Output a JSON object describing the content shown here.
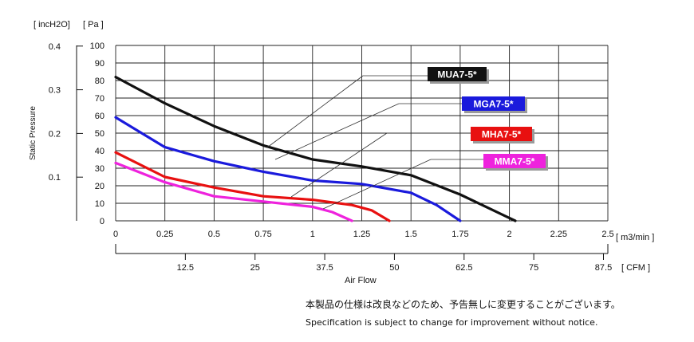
{
  "chart_data": {
    "type": "line",
    "title": "",
    "xlabel": "Air   Flow",
    "ylabel": "Static Pressure",
    "x_unit_primary": "[ m3/min ]",
    "x_unit_secondary": "[ CFM ]",
    "y_unit_primary": "[ Pa ]",
    "y_unit_secondary": "[ incH2O]",
    "xlim": [
      0,
      2.5
    ],
    "ylim": [
      0,
      100
    ],
    "x_ticks": [
      "0",
      "0.25",
      "0.5",
      "0.75",
      "1",
      "1.25",
      "1.5",
      "1.75",
      "2",
      "2.25",
      "2.5"
    ],
    "y_ticks": [
      "0",
      "10",
      "20",
      "30",
      "40",
      "50",
      "60",
      "70",
      "80",
      "90",
      "100"
    ],
    "cfm_ticks": [
      {
        "value": 12.5,
        "label": "12.5"
      },
      {
        "value": 25,
        "label": "25"
      },
      {
        "value": 37.5,
        "label": "37.5"
      },
      {
        "value": 50,
        "label": "50"
      },
      {
        "value": 62.5,
        "label": "62.5"
      },
      {
        "value": 75,
        "label": "75"
      },
      {
        "value": 87.5,
        "label": "87.5"
      }
    ],
    "inh2o_ticks": [
      {
        "value": 0.1,
        "label": "0.1"
      },
      {
        "value": 0.2,
        "label": "0.2"
      },
      {
        "value": 0.3,
        "label": "0.3"
      },
      {
        "value": 0.4,
        "label": "0.4"
      }
    ],
    "grid": true,
    "series": [
      {
        "name": "MUA7-5*",
        "color": "#111111",
        "x": [
          0,
          0.25,
          0.5,
          0.75,
          1.0,
          1.25,
          1.5,
          1.75,
          2.03
        ],
        "y": [
          82,
          67,
          54,
          43,
          35,
          31,
          26,
          15,
          0
        ]
      },
      {
        "name": "MGA7-5*",
        "color": "#1a1adc",
        "x": [
          0,
          0.25,
          0.5,
          0.75,
          1.0,
          1.25,
          1.5,
          1.63,
          1.75
        ],
        "y": [
          59,
          42,
          34,
          28,
          23,
          21,
          16,
          9,
          0
        ]
      },
      {
        "name": "MHA7-5*",
        "color": "#e81010",
        "x": [
          0,
          0.25,
          0.5,
          0.75,
          1.0,
          1.2,
          1.3,
          1.39
        ],
        "y": [
          39,
          25,
          19,
          14,
          12,
          9,
          6,
          0
        ]
      },
      {
        "name": "MMA7-5*",
        "color": "#ee22dd",
        "x": [
          0,
          0.25,
          0.5,
          0.75,
          1.0,
          1.1,
          1.2
        ],
        "y": [
          33,
          22,
          14,
          11,
          8,
          5,
          0
        ]
      }
    ]
  },
  "notes": {
    "japanese": "本製品の仕様は改良などのため、予告無しに変更することがございます。",
    "english": "Specification is subject to change for improvement without notice."
  }
}
